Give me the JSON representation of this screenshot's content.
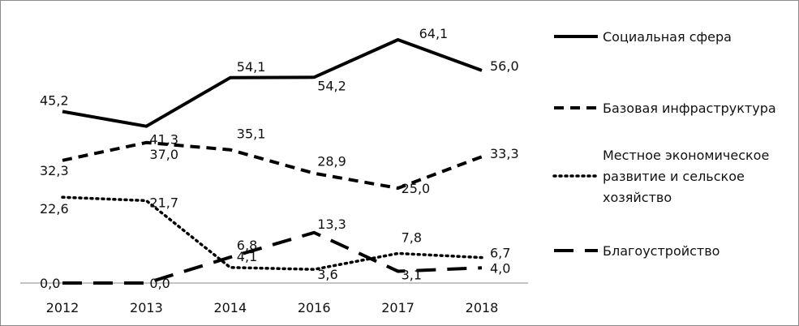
{
  "chart_data": {
    "type": "line",
    "categories": [
      "2012",
      "2013",
      "2014",
      "2016",
      "2017",
      "2018"
    ],
    "series": [
      {
        "name": "Социальная сфера",
        "values": [
          45.2,
          41.3,
          54.1,
          54.2,
          64.1,
          56.0
        ],
        "labels": [
          "45,2",
          "41,3",
          "54,1",
          "54,2",
          "64,1",
          "56,0"
        ],
        "style": "solid"
      },
      {
        "name": "Базовая инфраструктура",
        "values": [
          32.3,
          37.0,
          35.1,
          28.9,
          25.0,
          33.3
        ],
        "labels": [
          "32,3",
          "37,0",
          "35,1",
          "28,9",
          "25,0",
          "33,3"
        ],
        "style": "short-dash"
      },
      {
        "name": "Местное экономическое развитие и сельское хозяйство",
        "legend_lines": [
          "Местное экономическое",
          "развитие и сельское",
          "хозяйство"
        ],
        "values": [
          22.6,
          21.7,
          4.1,
          3.6,
          7.8,
          6.7
        ],
        "labels": [
          "22,6",
          "21,7",
          "4,1",
          "3,6",
          "7,8",
          "6,7"
        ],
        "style": "dotted"
      },
      {
        "name": "Благоустройство",
        "values": [
          0.0,
          0.0,
          6.8,
          13.3,
          3.1,
          4.0
        ],
        "labels": [
          "0,0",
          "0,0",
          "6,8",
          "13,3",
          "3,1",
          "4,0"
        ],
        "style": "long-dash"
      }
    ],
    "ylim": [
      0,
      70
    ],
    "grid": false,
    "legend_position": "right",
    "line_color": "#000000"
  }
}
